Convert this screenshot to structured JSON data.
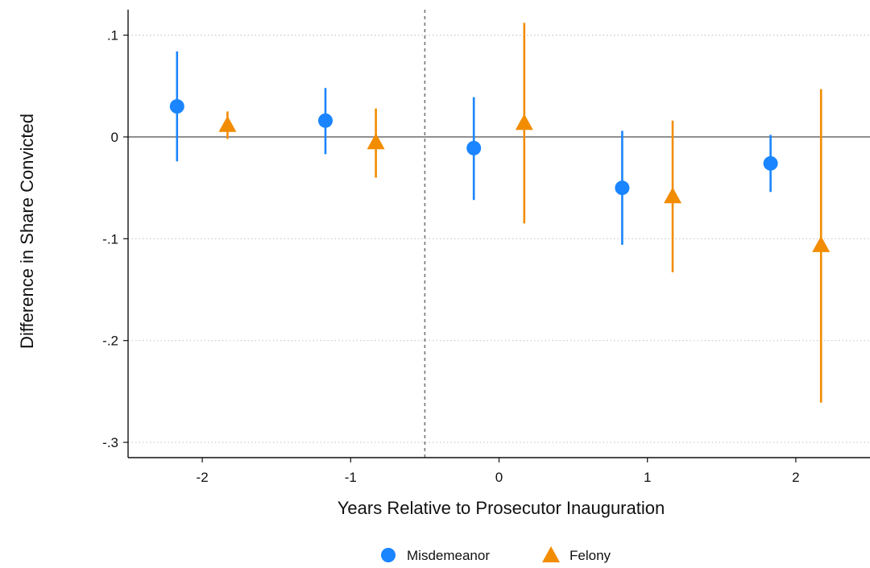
{
  "chart_data": {
    "type": "scatter",
    "xlabel": "Years Relative to Prosecutor Inauguration",
    "ylabel": "Difference in Share Convicted",
    "x_ticks": [
      {
        "value": -2,
        "label": "-2"
      },
      {
        "value": -1,
        "label": "-1"
      },
      {
        "value": 0,
        "label": "0"
      },
      {
        "value": 1,
        "label": "1"
      },
      {
        "value": 2,
        "label": "2"
      }
    ],
    "y_ticks": [
      {
        "value": 0.1,
        "label": ".1"
      },
      {
        "value": 0,
        "label": "0"
      },
      {
        "value": -0.1,
        "label": "-.1"
      },
      {
        "value": -0.2,
        "label": "-.2"
      },
      {
        "value": -0.3,
        "label": "-.3"
      }
    ],
    "xlim": [
      -2.5,
      2.5
    ],
    "ylim": [
      -0.315,
      0.125
    ],
    "grid": "horizontal dotted",
    "zero_line": 0,
    "reference_vline": -0.5,
    "legend_position": "bottom",
    "series": [
      {
        "name": "Misdemeanor",
        "color": "#1a85ff",
        "marker": "circle",
        "x_offset": -0.17,
        "points": [
          {
            "x": -2,
            "y": 0.03,
            "lo": -0.024,
            "hi": 0.084
          },
          {
            "x": -1,
            "y": 0.016,
            "lo": -0.017,
            "hi": 0.048
          },
          {
            "x": 0,
            "y": -0.011,
            "lo": -0.062,
            "hi": 0.039
          },
          {
            "x": 1,
            "y": -0.05,
            "lo": -0.106,
            "hi": 0.006
          },
          {
            "x": 2,
            "y": -0.026,
            "lo": -0.054,
            "hi": 0.002
          }
        ]
      },
      {
        "name": "Felony",
        "color": "#f28c00",
        "marker": "triangle",
        "x_offset": 0.17,
        "points": [
          {
            "x": -2,
            "y": 0.012,
            "lo": -0.002,
            "hi": 0.025
          },
          {
            "x": -1,
            "y": -0.005,
            "lo": -0.04,
            "hi": 0.028
          },
          {
            "x": 0,
            "y": 0.014,
            "lo": -0.085,
            "hi": 0.112
          },
          {
            "x": 1,
            "y": -0.058,
            "lo": -0.133,
            "hi": 0.016
          },
          {
            "x": 2,
            "y": -0.106,
            "lo": -0.261,
            "hi": 0.047
          }
        ]
      }
    ]
  }
}
